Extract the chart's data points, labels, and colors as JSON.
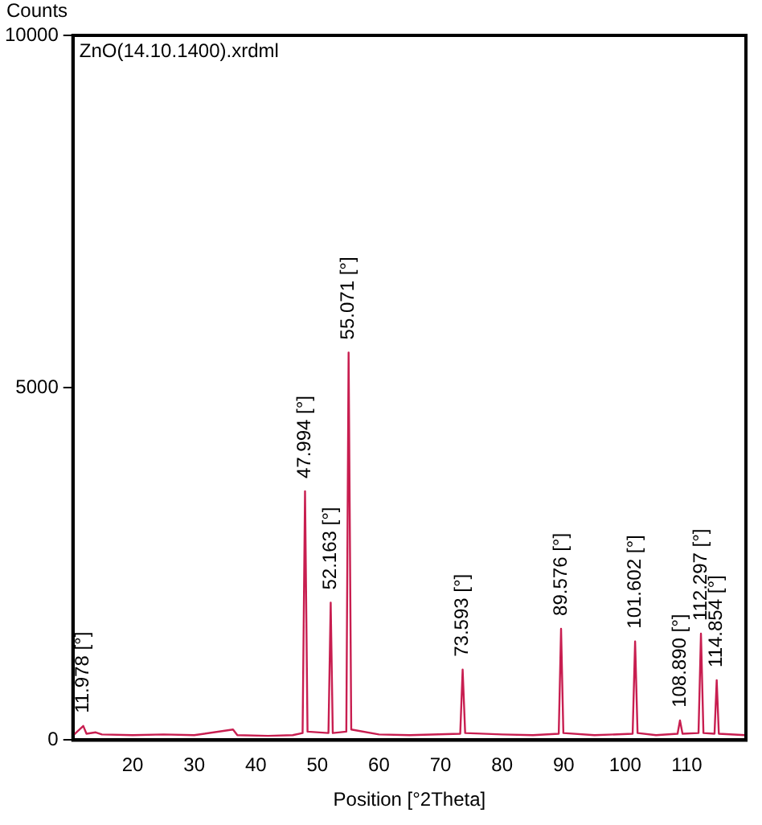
{
  "chart_data": {
    "type": "line",
    "xlabel": "Position [°2Theta]",
    "ylabel": "Counts",
    "x": [
      10.5,
      11.978,
      12.5,
      14,
      15,
      20,
      25,
      30,
      36.3,
      37,
      42,
      46,
      47.6,
      47.994,
      48.4,
      51.8,
      52.163,
      52.5,
      54.7,
      55.071,
      55.5,
      60,
      65,
      73.2,
      73.593,
      74,
      80,
      85,
      89.2,
      89.576,
      89.95,
      95,
      101.2,
      101.602,
      102,
      105,
      108.5,
      108.89,
      109.3,
      111.9,
      112.297,
      112.7,
      114.5,
      114.854,
      115.2,
      119.5
    ],
    "series": [
      {
        "color": "#c81e50",
        "values": [
          80,
          200,
          90,
          110,
          80,
          70,
          80,
          70,
          150,
          70,
          60,
          70,
          100,
          3530,
          120,
          100,
          1950,
          100,
          120,
          5500,
          150,
          80,
          70,
          90,
          1000,
          100,
          80,
          70,
          90,
          1580,
          100,
          70,
          90,
          1400,
          100,
          70,
          90,
          280,
          90,
          100,
          1510,
          100,
          90,
          850,
          90,
          70
        ]
      }
    ],
    "xlim": [
      10.3,
      119.6
    ],
    "ylim": [
      0,
      10000
    ],
    "xticks": [
      20,
      30,
      40,
      50,
      60,
      70,
      80,
      90,
      100,
      110
    ],
    "yticks": [
      0,
      5000,
      10000
    ],
    "grid": false,
    "legend": false,
    "marker": "none",
    "line_style": "solid",
    "annotations": [
      "ZnO(14.10.1400).xrdml",
      {
        "text": "11.978 [°]",
        "x": 11.978,
        "y": 200
      },
      {
        "text": "47.994 [°]",
        "x": 47.994,
        "y": 3530
      },
      {
        "text": "52.163 [°]",
        "x": 52.163,
        "y": 1950
      },
      {
        "text": "55.071 [°]",
        "x": 55.071,
        "y": 5500
      },
      {
        "text": "73.593 [°]",
        "x": 73.593,
        "y": 1000
      },
      {
        "text": "89.576 [°]",
        "x": 89.576,
        "y": 1580
      },
      {
        "text": "101.602 [°]",
        "x": 101.602,
        "y": 1400
      },
      {
        "text": "108.890 [°]",
        "x": 108.89,
        "y": 280
      },
      {
        "text": "112.297 [°]",
        "x": 112.297,
        "y": 1510
      },
      {
        "text": "114.854 [°]",
        "x": 114.854,
        "y": 850
      }
    ]
  }
}
